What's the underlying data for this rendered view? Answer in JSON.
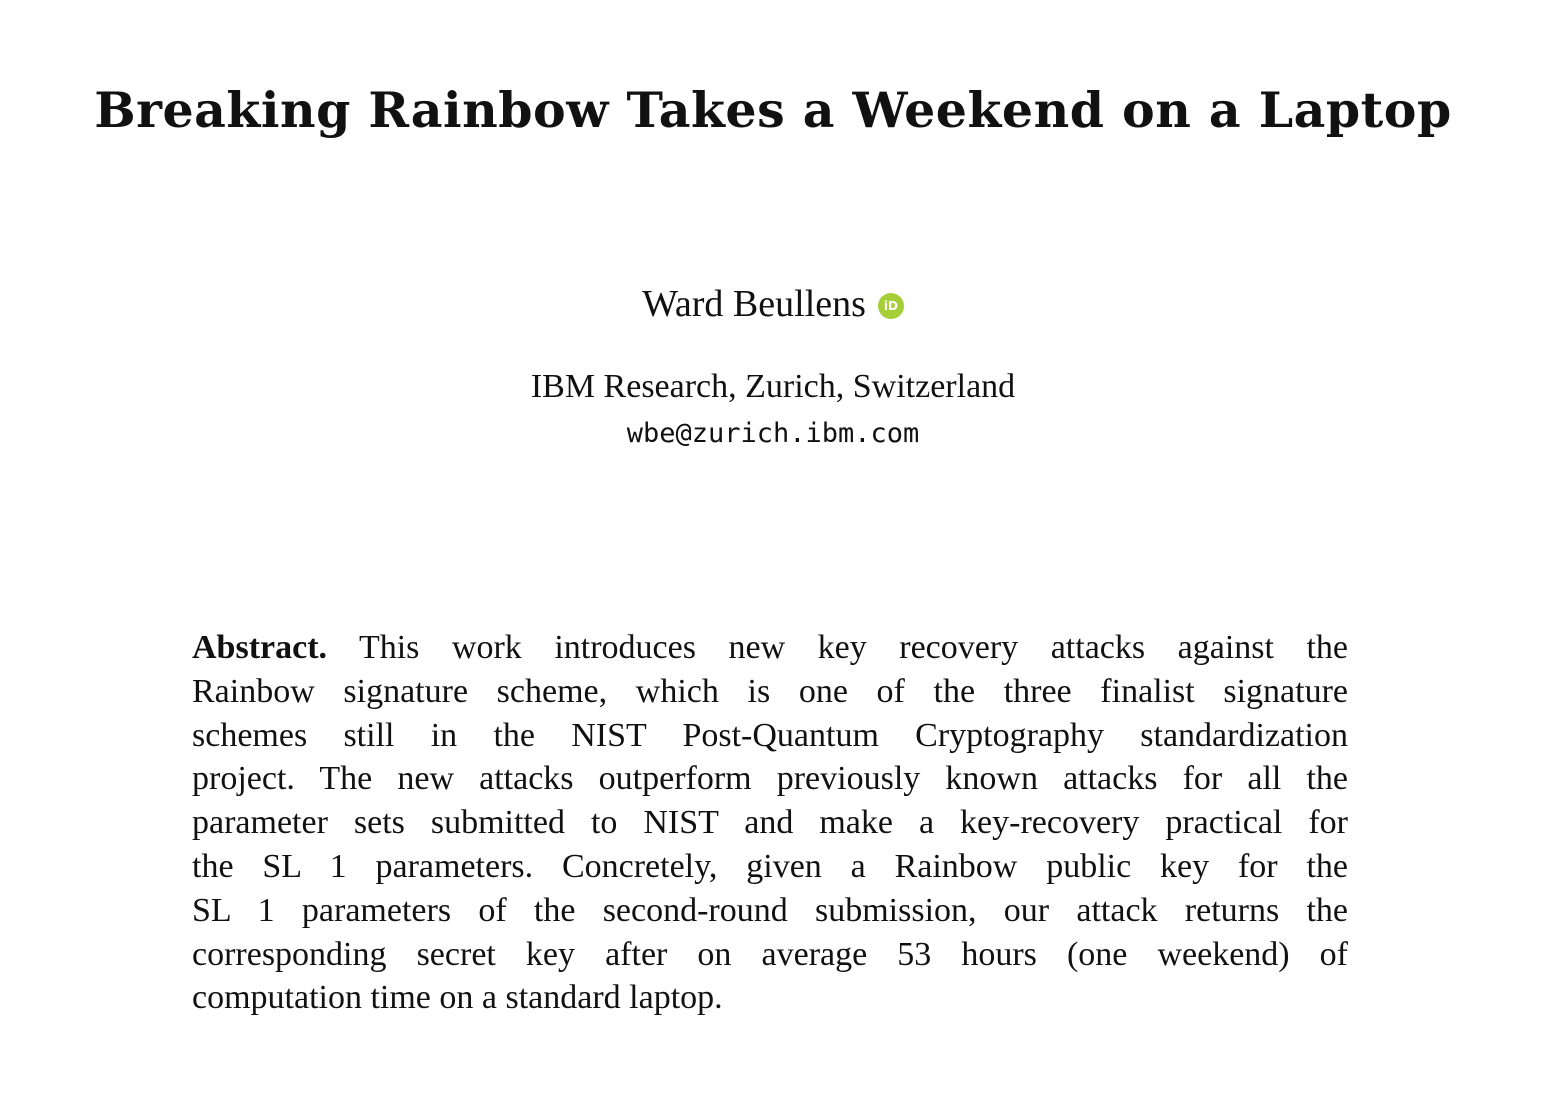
{
  "title": "Breaking Rainbow Takes a Weekend on a Laptop",
  "author": {
    "name": "Ward Beullens",
    "orcid_badge_text": "iD"
  },
  "affiliation": "IBM Research, Zurich, Switzerland",
  "email": "wbe@zurich.ibm.com",
  "abstract": {
    "heading": "Abstract.",
    "lines": [
      "This work introduces new key recovery attacks against the",
      "Rainbow signature scheme, which is one of the three finalist signature",
      "schemes still in the NIST Post-Quantum Cryptography standardization",
      "project. The new attacks outperform previously known attacks for all the",
      "parameter sets submitted to NIST and make a key-recovery practical for",
      "the SL 1 parameters. Concretely, given a Rainbow public key for the",
      "SL 1 parameters of the second-round submission, our attack returns the",
      "corresponding secret key after on average 53 hours (one weekend) of",
      "computation time on a standard laptop."
    ]
  },
  "colors": {
    "orcid": "#a6ce39",
    "text": "#111111",
    "background": "#ffffff"
  }
}
